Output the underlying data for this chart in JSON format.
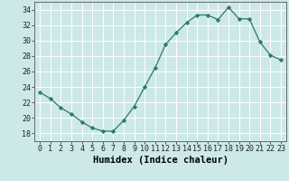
{
  "x": [
    0,
    1,
    2,
    3,
    4,
    5,
    6,
    7,
    8,
    9,
    10,
    11,
    12,
    13,
    14,
    15,
    16,
    17,
    18,
    19,
    20,
    21,
    22,
    23
  ],
  "y": [
    23.3,
    22.5,
    21.3,
    20.5,
    19.5,
    18.7,
    18.3,
    18.3,
    19.7,
    21.5,
    24.0,
    26.5,
    29.5,
    31.0,
    32.3,
    33.3,
    33.3,
    32.7,
    34.3,
    32.8,
    32.8,
    29.8,
    28.1,
    27.5
  ],
  "xlabel": "Humidex (Indice chaleur)",
  "ylim": [
    17,
    35
  ],
  "xlim": [
    -0.5,
    23.5
  ],
  "yticks": [
    18,
    20,
    22,
    24,
    26,
    28,
    30,
    32,
    34
  ],
  "xticks": [
    0,
    1,
    2,
    3,
    4,
    5,
    6,
    7,
    8,
    9,
    10,
    11,
    12,
    13,
    14,
    15,
    16,
    17,
    18,
    19,
    20,
    21,
    22,
    23
  ],
  "line_color": "#2d7a6a",
  "marker_color": "#2d7a6a",
  "bg_color": "#cde8e8",
  "grid_color": "#ffffff",
  "xlabel_fontsize": 7.5,
  "tick_fontsize": 6.0
}
